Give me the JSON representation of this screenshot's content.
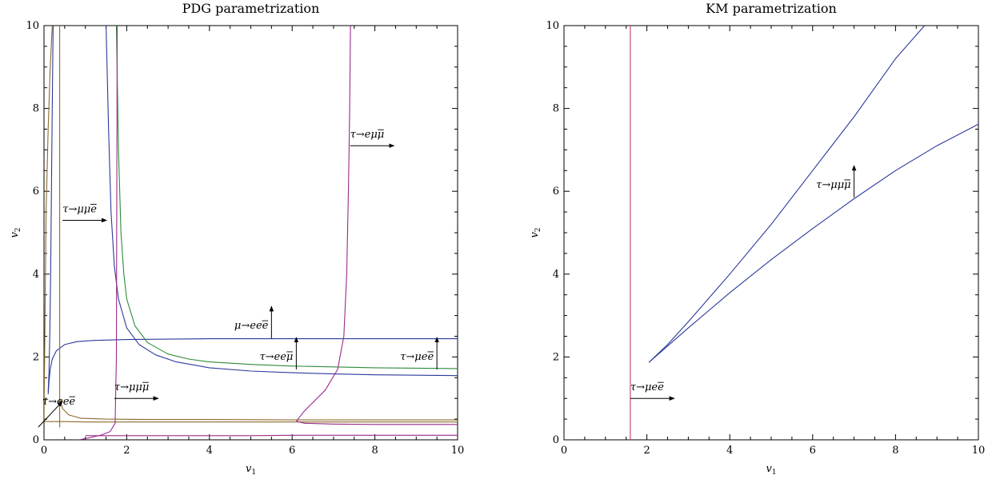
{
  "chart_data": [
    {
      "type": "line",
      "title": "PDG parametrization",
      "xlabel": "v1",
      "ylabel": "v2",
      "xlim": [
        0,
        10
      ],
      "ylim": [
        0,
        10
      ],
      "xticks": [
        0,
        2,
        4,
        6,
        8,
        10
      ],
      "yticks": [
        0,
        2,
        4,
        6,
        8,
        10
      ],
      "tick_labels": [
        "0",
        "2",
        "4",
        "6",
        "8",
        "10"
      ],
      "grid": false,
      "series": [
        {
          "color": "#2b3a9a",
          "x": [
            0.1,
            0.12,
            0.15,
            0.2,
            0.3,
            0.5,
            0.8,
            1.2,
            2,
            3,
            4,
            5,
            6,
            7,
            8,
            9,
            10
          ],
          "y": [
            1.1,
            1.4,
            1.7,
            1.95,
            2.15,
            2.3,
            2.37,
            2.4,
            2.42,
            2.43,
            2.44,
            2.44,
            2.44,
            2.44,
            2.44,
            2.44,
            2.44
          ]
        },
        {
          "color": "#2b3a9a",
          "x": [
            0.1,
            0.12,
            0.14,
            0.16,
            0.18,
            0.2,
            0.22
          ],
          "y": [
            1.15,
            1.6,
            2.5,
            4.0,
            6.0,
            8.0,
            10
          ]
        },
        {
          "color": "#2b3a9a",
          "x": [
            1.5,
            1.56,
            1.62,
            1.7,
            1.8,
            2.0,
            2.3,
            2.7,
            3.2,
            4,
            5,
            6,
            7,
            8,
            9,
            10
          ],
          "y": [
            10,
            7.5,
            5.5,
            4.2,
            3.4,
            2.7,
            2.3,
            2.05,
            1.88,
            1.74,
            1.66,
            1.62,
            1.59,
            1.57,
            1.56,
            1.55
          ]
        },
        {
          "color": "#2e8b3a",
          "x": [
            1.75,
            1.8,
            1.86,
            1.93,
            2.0,
            2.2,
            2.5,
            3.0,
            3.5,
            4,
            5,
            6,
            7,
            8,
            9,
            10
          ],
          "y": [
            10,
            7.0,
            5.0,
            4.0,
            3.4,
            2.75,
            2.35,
            2.07,
            1.95,
            1.88,
            1.82,
            1.78,
            1.76,
            1.74,
            1.73,
            1.72
          ]
        },
        {
          "color": "#8b6b2b",
          "x": [
            0.0,
            0.01,
            0.03,
            0.05,
            0.1,
            0.15,
            0.2
          ],
          "y": [
            0.42,
            1.5,
            3.5,
            5.5,
            7.5,
            9.0,
            10
          ]
        },
        {
          "color": "#8b6b2b",
          "x": [
            0.38,
            0.38,
            0.38,
            0.38,
            0.38
          ],
          "y": [
            10,
            6,
            3,
            1,
            0.3
          ]
        },
        {
          "color": "#8b6b2b",
          "x": [
            0.38,
            0.45,
            0.6,
            0.9,
            1.5,
            2.5,
            4,
            6,
            8,
            10
          ],
          "y": [
            1.0,
            0.75,
            0.6,
            0.52,
            0.5,
            0.49,
            0.49,
            0.48,
            0.48,
            0.48
          ]
        },
        {
          "color": "#8b6b2b",
          "x": [
            0,
            0.5,
            1,
            2,
            3,
            4,
            5,
            6,
            7,
            8,
            9,
            10
          ],
          "y": [
            0.44,
            0.44,
            0.43,
            0.43,
            0.43,
            0.43,
            0.43,
            0.43,
            0.43,
            0.43,
            0.43,
            0.43
          ]
        },
        {
          "color": "#9a2b8b",
          "x": [
            0.85,
            1.1,
            1.4,
            1.6,
            1.72,
            1.75,
            1.76,
            1.77
          ],
          "y": [
            0.0,
            0.05,
            0.12,
            0.2,
            0.4,
            2.0,
            6.0,
            10
          ]
        },
        {
          "color": "#9a2b8b",
          "x": [
            6.1,
            6.3,
            6.8,
            7.1,
            7.25,
            7.32,
            7.36,
            7.39,
            7.41
          ],
          "y": [
            0.45,
            0.7,
            1.2,
            1.7,
            2.5,
            4.0,
            6.0,
            8.0,
            10
          ]
        },
        {
          "color": "#9a2b8b",
          "x": [
            6.1,
            6.3,
            7,
            8,
            9,
            10
          ],
          "y": [
            0.45,
            0.4,
            0.38,
            0.37,
            0.37,
            0.37
          ]
        },
        {
          "color": "#9a2b8b",
          "x": [
            1,
            2,
            3,
            4,
            5,
            6,
            7,
            8,
            9,
            10
          ],
          "y": [
            0.1,
            0.1,
            0.1,
            0.1,
            0.1,
            0.11,
            0.11,
            0.11,
            0.11,
            0.11
          ]
        }
      ],
      "annotations": [
        {
          "text": "τ→eμμ",
          "bar": "μ",
          "x": 7.4,
          "y": 7.1,
          "arrow": "right"
        },
        {
          "text": "τ→μμe",
          "bar": "e",
          "x": 0.45,
          "y": 5.3,
          "arrow": "right"
        },
        {
          "text": "μ→eee",
          "bar": "e",
          "x": 5.5,
          "y": 2.45,
          "arrow": "up"
        },
        {
          "text": "τ→eeμ",
          "bar": "μ",
          "x": 6.1,
          "y": 1.7,
          "arrow": "up"
        },
        {
          "text": "τ→μee",
          "bar": "e",
          "x": 9.5,
          "y": 1.7,
          "arrow": "up"
        },
        {
          "text": "τ→eee",
          "bar": "e",
          "x": 0.25,
          "y": 0.5,
          "arrow": "up-right"
        },
        {
          "text": "τ→μμμ",
          "bar": "μ",
          "x": 1.7,
          "y": 1.0,
          "arrow": "right"
        }
      ]
    },
    {
      "type": "line",
      "title": "KM parametrization",
      "xlabel": "v1",
      "ylabel": "v2",
      "xlim": [
        0,
        10
      ],
      "ylim": [
        0,
        10
      ],
      "xticks": [
        0,
        2,
        4,
        6,
        8,
        10
      ],
      "yticks": [
        0,
        2,
        4,
        6,
        8,
        10
      ],
      "tick_labels": [
        "0",
        "2",
        "4",
        "6",
        "8",
        "10"
      ],
      "grid": false,
      "series": [
        {
          "color": "#2b3a9a",
          "x": [
            2.05,
            2.5,
            3,
            4,
            5,
            6,
            7,
            8,
            8.7
          ],
          "y": [
            1.87,
            2.3,
            2.85,
            4.0,
            5.2,
            6.5,
            7.8,
            9.2,
            10.0
          ]
        },
        {
          "color": "#2b3a9a",
          "x": [
            2.05,
            3,
            4,
            5,
            6,
            7,
            8,
            9,
            10
          ],
          "y": [
            1.87,
            2.7,
            3.55,
            4.35,
            5.1,
            5.82,
            6.5,
            7.1,
            7.62
          ]
        },
        {
          "color": "#c43a7a",
          "x": [
            1.6,
            1.6
          ],
          "y": [
            0,
            10
          ]
        }
      ],
      "annotations": [
        {
          "text": "τ→μμμ",
          "bar": "μ",
          "x": 7.0,
          "y": 5.85,
          "arrow": "up"
        },
        {
          "text": "τ→μee",
          "bar": "e",
          "x": 1.6,
          "y": 1.0,
          "arrow": "right"
        }
      ]
    }
  ]
}
